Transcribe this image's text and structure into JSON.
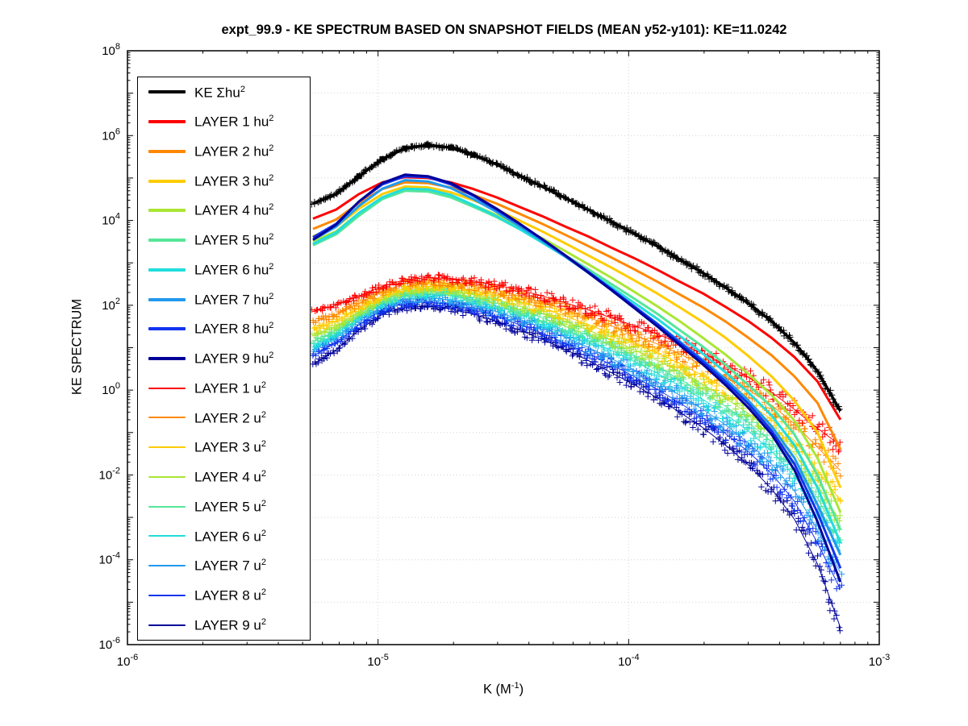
{
  "chart_data": {
    "type": "line",
    "title": "expt_99.9 - KE SPECTRUM BASED ON SNAPSHOT FIELDS (MEAN y52-y101): KE=11.0242",
    "x_axis": {
      "label": "K  (M^-1)",
      "scale": "log",
      "range": [
        1e-06,
        0.001
      ],
      "tick_exponents": [
        -6,
        -5,
        -4,
        -3
      ]
    },
    "y_axis": {
      "label": "KE SPECTRUM",
      "scale": "log",
      "range": [
        1e-06,
        100000000.0
      ],
      "tick_exponents": [
        8,
        6,
        4,
        2,
        0,
        -2,
        -4,
        -6
      ]
    },
    "legend_position": "top-left",
    "grid": "dotted-major",
    "x": [
      5.5e-06,
      6.8e-06,
      8.4e-06,
      1.04e-05,
      1.28e-05,
      1.58e-05,
      1.95e-05,
      2.4e-05,
      2.97e-05,
      3.66e-05,
      4.52e-05,
      5.58e-05,
      6.89e-05,
      8.51e-05,
      0.000105,
      0.00013,
      0.00016,
      0.000198,
      0.000244,
      0.000301,
      0.000372,
      0.000459,
      0.000567,
      0.0007
    ],
    "series": [
      {
        "name": "KE Σhu^2",
        "color": "#000000",
        "style": "thick-line+markers",
        "marker": "+",
        "values": [
          25000.0,
          42000.0,
          110000.0,
          280000.0,
          500000.0,
          600000.0,
          520000.0,
          350000.0,
          210000.0,
          115000.0,
          63000.0,
          34000.0,
          18000.0,
          9500.0,
          4900.0,
          2500.0,
          1200.0,
          580.0,
          260.0,
          110.0,
          42.0,
          13.0,
          2.8,
          0.32
        ]
      },
      {
        "name": "LAYER 1 hu^2",
        "color": "#ff0000",
        "style": "thick-line",
        "values": [
          11000.0,
          18000.0,
          42000.0,
          79000.0,
          105000.0,
          100000.0,
          79000.0,
          55000.0,
          35000.0,
          21000.0,
          12600.0,
          7200.0,
          4200.0,
          2300.0,
          1300.0,
          690.0,
          360.0,
          190.0,
          91.0,
          42.0,
          17.0,
          6.0,
          1.6,
          0.2
        ]
      },
      {
        "name": "LAYER 2 hu^2",
        "color": "#ff8800",
        "style": "thick-line",
        "values": [
          6300.0,
          10500.0,
          26000.0,
          55000.0,
          79000.0,
          76000.0,
          60000.0,
          40000.0,
          25000.0,
          14500.0,
          8300.0,
          4600.0,
          2500.0,
          1350.0,
          710.0,
          360.0,
          180.0,
          89.0,
          41.0,
          17.0,
          6.6,
          2.1,
          0.5,
          0.04
        ]
      },
      {
        "name": "LAYER 3 hu^2",
        "color": "#ffcc00",
        "style": "thick-line",
        "values": [
          4200.0,
          7100.0,
          19000.0,
          42000.0,
          63000.0,
          60000.0,
          46000.0,
          30000.0,
          18000.0,
          10000.0,
          5500.0,
          2900.0,
          1500.0,
          780.0,
          390.0,
          190.0,
          89.0,
          40.0,
          17.0,
          6.3,
          2.1,
          0.56,
          0.1,
          0.005
        ]
      },
      {
        "name": "LAYER 4 hu^2",
        "color": "#aae634",
        "style": "thick-line",
        "values": [
          3200.0,
          5500.0,
          15000.0,
          34000.0,
          52000.0,
          50000.0,
          37000.0,
          23000.0,
          13500.0,
          7200.0,
          3800.0,
          1900.0,
          930.0,
          450.0,
          210.0,
          95.0,
          42.0,
          17.0,
          6.8,
          2.4,
          0.76,
          0.19,
          0.025,
          0.0013
        ]
      },
      {
        "name": "LAYER 5 hu^2",
        "color": "#55e699",
        "style": "thick-line",
        "values": [
          2600.0,
          4700.0,
          13000.0,
          32000.0,
          50000.0,
          48000.0,
          35000.0,
          21000.0,
          12000.0,
          6300.0,
          3200.0,
          1500.0,
          710.0,
          320.0,
          145.0,
          63.0,
          26.0,
          10.5,
          3.9,
          1.3,
          0.4,
          0.09,
          0.01,
          0.0005
        ]
      },
      {
        "name": "LAYER 6 hu^2",
        "color": "#22dddd",
        "style": "thick-line",
        "values": [
          2800.0,
          5200.0,
          15000.0,
          35000.0,
          56000.0,
          54000.0,
          40000.0,
          23000.0,
          12600.0,
          6300.0,
          3000.0,
          1400.0,
          620.0,
          270.0,
          115.0,
          48.0,
          19.0,
          7.2,
          2.6,
          0.87,
          0.25,
          0.05,
          0.005,
          0.00025
        ]
      },
      {
        "name": "LAYER 7 hu^2",
        "color": "#2299ee",
        "style": "thick-line",
        "values": [
          3500.0,
          7100.0,
          22000.0,
          56000.0,
          89000.0,
          83000.0,
          58000.0,
          32000.0,
          16000.0,
          7400.0,
          3300.0,
          1400.0,
          590.0,
          240.0,
          95.0,
          37.0,
          14.0,
          5.1,
          1.8,
          0.56,
          0.14,
          0.025,
          0.002,
          0.00013
        ]
      },
      {
        "name": "LAYER 8 hu^2",
        "color": "#1133ee",
        "style": "thick-line",
        "values": [
          4000.0,
          8300.0,
          28000.0,
          71000.0,
          110000.0,
          105000.0,
          71000.0,
          38000.0,
          18000.0,
          8300.0,
          3600.0,
          1500.0,
          620.0,
          245.0,
          95.0,
          36.0,
          13.0,
          4.7,
          1.55,
          0.47,
          0.11,
          0.018,
          0.0013,
          6.3e-05
        ]
      },
      {
        "name": "LAYER 9 hu^2",
        "color": "#000099",
        "style": "thick-line",
        "values": [
          3500.0,
          7900.0,
          28000.0,
          76000.0,
          120000.0,
          110000.0,
          76000.0,
          40000.0,
          19000.0,
          8500.0,
          3600.0,
          1500.0,
          590.0,
          230.0,
          87.0,
          32.0,
          11.5,
          4.0,
          1.3,
          0.38,
          0.09,
          0.013,
          0.0008,
          3e-05
        ]
      },
      {
        "name": "LAYER 1 u^2",
        "color": "#ff0000",
        "style": "thin-line+markers",
        "marker": "+",
        "values": [
          71.0,
          100.0,
          166.0,
          280.0,
          400.0,
          450.0,
          430.0,
          370.0,
          300.0,
          230.0,
          166.0,
          115.0,
          78.0,
          51.0,
          33.0,
          21.0,
          12.6,
          7.2,
          4.0,
          2.0,
          0.89,
          0.35,
          0.126,
          0.05
        ]
      },
      {
        "name": "LAYER 2 u^2",
        "color": "#ff8800",
        "style": "thin-line+markers",
        "marker": "+",
        "values": [
          40.0,
          60.0,
          112.0,
          210.0,
          320.0,
          355.0,
          330.0,
          280.0,
          224.0,
          166.0,
          117.0,
          79.0,
          52.0,
          33.0,
          20.0,
          12.3,
          7.1,
          3.9,
          2.0,
          1.0,
          0.44,
          0.16,
          0.045,
          0.0126
        ]
      },
      {
        "name": "LAYER 3 u^2",
        "color": "#ffcc00",
        "style": "thin-line+markers",
        "marker": "+",
        "values": [
          26.0,
          42.0,
          85.0,
          166.0,
          250.0,
          280.0,
          260.0,
          220.0,
          170.0,
          123.0,
          85.0,
          56.0,
          35.0,
          22.0,
          13.0,
          7.6,
          4.2,
          2.2,
          1.1,
          0.5,
          0.2,
          0.063,
          0.0126,
          0.0025
        ]
      },
      {
        "name": "LAYER 4 u^2",
        "color": "#aae634",
        "style": "thin-line+markers",
        "marker": "+",
        "values": [
          19.0,
          32.0,
          69.0,
          138.0,
          214.0,
          240.0,
          220.0,
          178.0,
          135.0,
          95.0,
          65.0,
          42.0,
          26.0,
          15.5,
          8.9,
          5.0,
          2.7,
          1.35,
          0.63,
          0.28,
          0.105,
          0.032,
          0.0056,
          0.0008
        ]
      },
      {
        "name": "LAYER 5 u^2",
        "color": "#55e699",
        "style": "thin-line+markers",
        "marker": "+",
        "values": [
          14.0,
          25.0,
          58.0,
          120.0,
          186.0,
          210.0,
          190.0,
          151.0,
          112.0,
          78.0,
          51.0,
          32.0,
          19.5,
          11.5,
          6.5,
          3.5,
          1.8,
          0.89,
          0.41,
          0.17,
          0.06,
          0.017,
          0.0028,
          0.0003
        ]
      },
      {
        "name": "LAYER 6 u^2",
        "color": "#22dddd",
        "style": "thin-line+markers",
        "marker": "+",
        "values": [
          11.0,
          21.0,
          50.0,
          107.0,
          170.0,
          190.0,
          170.0,
          132.0,
          95.0,
          65.0,
          42.0,
          26.0,
          15.0,
          8.7,
          4.8,
          2.5,
          1.26,
          0.6,
          0.27,
          0.107,
          0.036,
          0.0095,
          0.0014,
          0.00016
        ]
      },
      {
        "name": "LAYER 7 u^2",
        "color": "#2299ee",
        "style": "thin-line+markers",
        "marker": "+",
        "values": [
          8.9,
          17.4,
          44.0,
          93.0,
          135.0,
          151.0,
          132.0,
          100.0,
          71.0,
          47.0,
          30.0,
          17.8,
          10.2,
          5.6,
          3.0,
          1.55,
          0.76,
          0.35,
          0.15,
          0.056,
          0.018,
          0.0042,
          0.0005,
          5e-05
        ]
      },
      {
        "name": "LAYER 8 u^2",
        "color": "#1133ee",
        "style": "thin-line+markers",
        "marker": "+",
        "values": [
          6.3,
          13.2,
          35.0,
          79.0,
          112.0,
          120.0,
          105.0,
          79.0,
          55.0,
          35.0,
          22.0,
          12.9,
          7.2,
          4.0,
          2.1,
          1.05,
          0.5,
          0.22,
          0.093,
          0.035,
          0.0107,
          0.0024,
          0.00025,
          2e-05
        ]
      },
      {
        "name": "LAYER 9 u^2",
        "color": "#000099",
        "style": "thin-line+markers",
        "marker": "+",
        "values": [
          4.0,
          8.9,
          26.0,
          63.0,
          89.0,
          95.0,
          83.0,
          62.0,
          42.0,
          26.0,
          15.8,
          9.1,
          5.0,
          2.6,
          1.35,
          0.66,
          0.3,
          0.13,
          0.05,
          0.017,
          0.0047,
          0.0009,
          8e-05,
          2.5e-06
        ]
      }
    ]
  }
}
